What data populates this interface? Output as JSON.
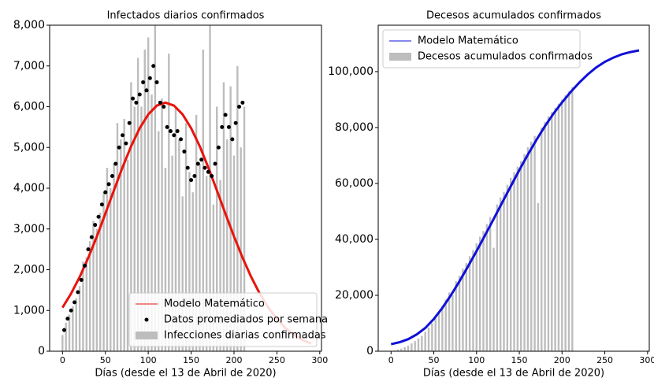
{
  "chart_data": [
    {
      "type": "combo",
      "title": "Infectados diarios confirmados",
      "xlabel": "Días (desde el 13 de Abril de 2020)",
      "xlim": [
        -15,
        302
      ],
      "ylim": [
        0,
        8000
      ],
      "xticks": [
        0,
        50,
        100,
        150,
        200,
        250,
        300
      ],
      "yticks": [
        0,
        {
          "value": 1000,
          "label": "1,000"
        },
        {
          "value": 2000,
          "label": "2,000"
        },
        {
          "value": 3000,
          "label": "3,000"
        },
        {
          "value": 4000,
          "label": "4,000"
        },
        {
          "value": 5000,
          "label": "5,000"
        },
        {
          "value": 6000,
          "label": "6,000"
        },
        {
          "value": 7000,
          "label": "7,000"
        },
        {
          "value": 8000,
          "label": "8,000"
        }
      ],
      "legend": "lower right",
      "series": [
        {
          "name": "Modelo Matemático",
          "type": "line",
          "color": "#e8140c",
          "x": [
            0,
            10,
            20,
            30,
            40,
            50,
            60,
            70,
            80,
            90,
            100,
            110,
            120,
            130,
            140,
            150,
            160,
            170,
            180,
            190,
            200,
            210,
            220,
            230,
            240,
            250,
            260,
            270,
            280,
            290
          ],
          "values": [
            1071,
            1414,
            1822,
            2292,
            2815,
            3375,
            3949,
            4510,
            5029,
            5472,
            5812,
            6027,
            6100,
            6027,
            5812,
            5472,
            5029,
            4510,
            3949,
            3375,
            2815,
            2292,
            1822,
            1414,
            1071,
            792,
            571,
            402,
            277,
            185
          ]
        },
        {
          "name": "Datos promediados por semana",
          "type": "scatter",
          "color": "#000000",
          "x": [
            2,
            6,
            10,
            14,
            18,
            22,
            26,
            30,
            34,
            38,
            42,
            46,
            50,
            54,
            58,
            62,
            66,
            70,
            74,
            78,
            82,
            86,
            90,
            94,
            98,
            102,
            106,
            110,
            114,
            118,
            122,
            126,
            130,
            134,
            138,
            142,
            146,
            150,
            154,
            158,
            162,
            166,
            170,
            174,
            178,
            182,
            186,
            190,
            194,
            198,
            202,
            206,
            210
          ],
          "values": [
            520,
            800,
            1000,
            1200,
            1450,
            1750,
            2100,
            2500,
            2800,
            3100,
            3300,
            3600,
            3900,
            4100,
            4300,
            4600,
            5000,
            5300,
            5100,
            5600,
            6200,
            6100,
            6300,
            6600,
            6400,
            6700,
            7000,
            6600,
            6100,
            6000,
            5500,
            5400,
            5300,
            5400,
            5200,
            4900,
            4500,
            4200,
            4300,
            4600,
            4700,
            4500,
            4400,
            4300,
            4600,
            5000,
            5500,
            5800,
            5500,
            5200,
            5600,
            6000,
            6100
          ]
        },
        {
          "name": "Infecciones diarias confirmadas",
          "type": "bar",
          "color": "#bdbdbd",
          "x": [
            0,
            4,
            8,
            12,
            16,
            20,
            24,
            28,
            32,
            36,
            40,
            44,
            48,
            52,
            56,
            60,
            64,
            68,
            72,
            76,
            80,
            84,
            88,
            92,
            96,
            100,
            104,
            108,
            112,
            116,
            120,
            124,
            128,
            132,
            136,
            140,
            144,
            148,
            152,
            156,
            160,
            164,
            168,
            172,
            176,
            180,
            184,
            188,
            192,
            196,
            200,
            204,
            208,
            212
          ],
          "values": [
            400,
            700,
            900,
            1100,
            1300,
            1600,
            2200,
            2300,
            2700,
            3200,
            3000,
            3400,
            3900,
            4500,
            4000,
            4600,
            5600,
            5200,
            5700,
            4700,
            6600,
            6000,
            7200,
            6000,
            7400,
            7700,
            6300,
            8000,
            5400,
            6200,
            4500,
            7300,
            4800,
            6000,
            5200,
            3800,
            5600,
            4400,
            3900,
            5800,
            4600,
            7400,
            4300,
            8000,
            3600,
            6000,
            4200,
            6600,
            5200,
            6500,
            4800,
            7000,
            5000,
            6000
          ]
        }
      ]
    },
    {
      "type": "combo",
      "title": "Decesos acumulados confirmados",
      "xlabel": "Días (desde el 13 de Abril de 2020)",
      "xlim": [
        -15,
        302
      ],
      "ylim": [
        0,
        116600
      ],
      "xticks": [
        0,
        50,
        100,
        150,
        200,
        250,
        300
      ],
      "yticks": [
        0,
        {
          "value": 20000,
          "label": "20,000"
        },
        {
          "value": 40000,
          "label": "40,000"
        },
        {
          "value": 60000,
          "label": "60,000"
        },
        {
          "value": 80000,
          "label": "80,000"
        },
        {
          "value": 100000,
          "label": "100,000"
        }
      ],
      "legend": "upper left",
      "series": [
        {
          "name": "Modelo Matemático",
          "type": "line",
          "color": "#1010d8",
          "x": [
            0,
            10,
            20,
            30,
            40,
            50,
            60,
            70,
            80,
            90,
            100,
            110,
            120,
            130,
            140,
            150,
            160,
            170,
            180,
            190,
            200,
            210,
            220,
            230,
            240,
            250,
            260,
            270,
            280,
            290
          ],
          "values": [
            2500,
            3200,
            4300,
            6000,
            8300,
            11500,
            15500,
            20000,
            25000,
            30300,
            35800,
            41500,
            47300,
            53200,
            59000,
            64800,
            70300,
            75600,
            80500,
            85000,
            89000,
            92700,
            96000,
            99000,
            101500,
            103500,
            105000,
            106200,
            107000,
            107600
          ]
        },
        {
          "name": "Decesos acumulados confirmados",
          "type": "bar",
          "color": "#bdbdbd",
          "x": [
            0,
            4,
            8,
            12,
            16,
            20,
            24,
            28,
            32,
            36,
            40,
            44,
            48,
            52,
            56,
            60,
            64,
            68,
            72,
            76,
            80,
            84,
            88,
            92,
            96,
            100,
            104,
            108,
            112,
            116,
            120,
            124,
            128,
            132,
            136,
            140,
            144,
            148,
            152,
            156,
            160,
            164,
            168,
            172,
            176,
            180,
            184,
            188,
            192,
            196,
            200,
            204,
            208,
            212
          ],
          "values": [
            100,
            300,
            600,
            900,
            1400,
            2000,
            2800,
            3600,
            4500,
            5500,
            7000,
            8500,
            10000,
            11800,
            14000,
            16200,
            18500,
            21000,
            20000,
            25000,
            27000,
            29500,
            31500,
            34000,
            36200,
            38600,
            41000,
            43000,
            45500,
            48000,
            37000,
            52500,
            55000,
            57000,
            59500,
            62000,
            64000,
            66000,
            68000,
            70500,
            73000,
            75000,
            77000,
            53000,
            80000,
            82000,
            84000,
            85500,
            87000,
            88500,
            90000,
            91500,
            93000,
            94500
          ]
        }
      ]
    }
  ]
}
